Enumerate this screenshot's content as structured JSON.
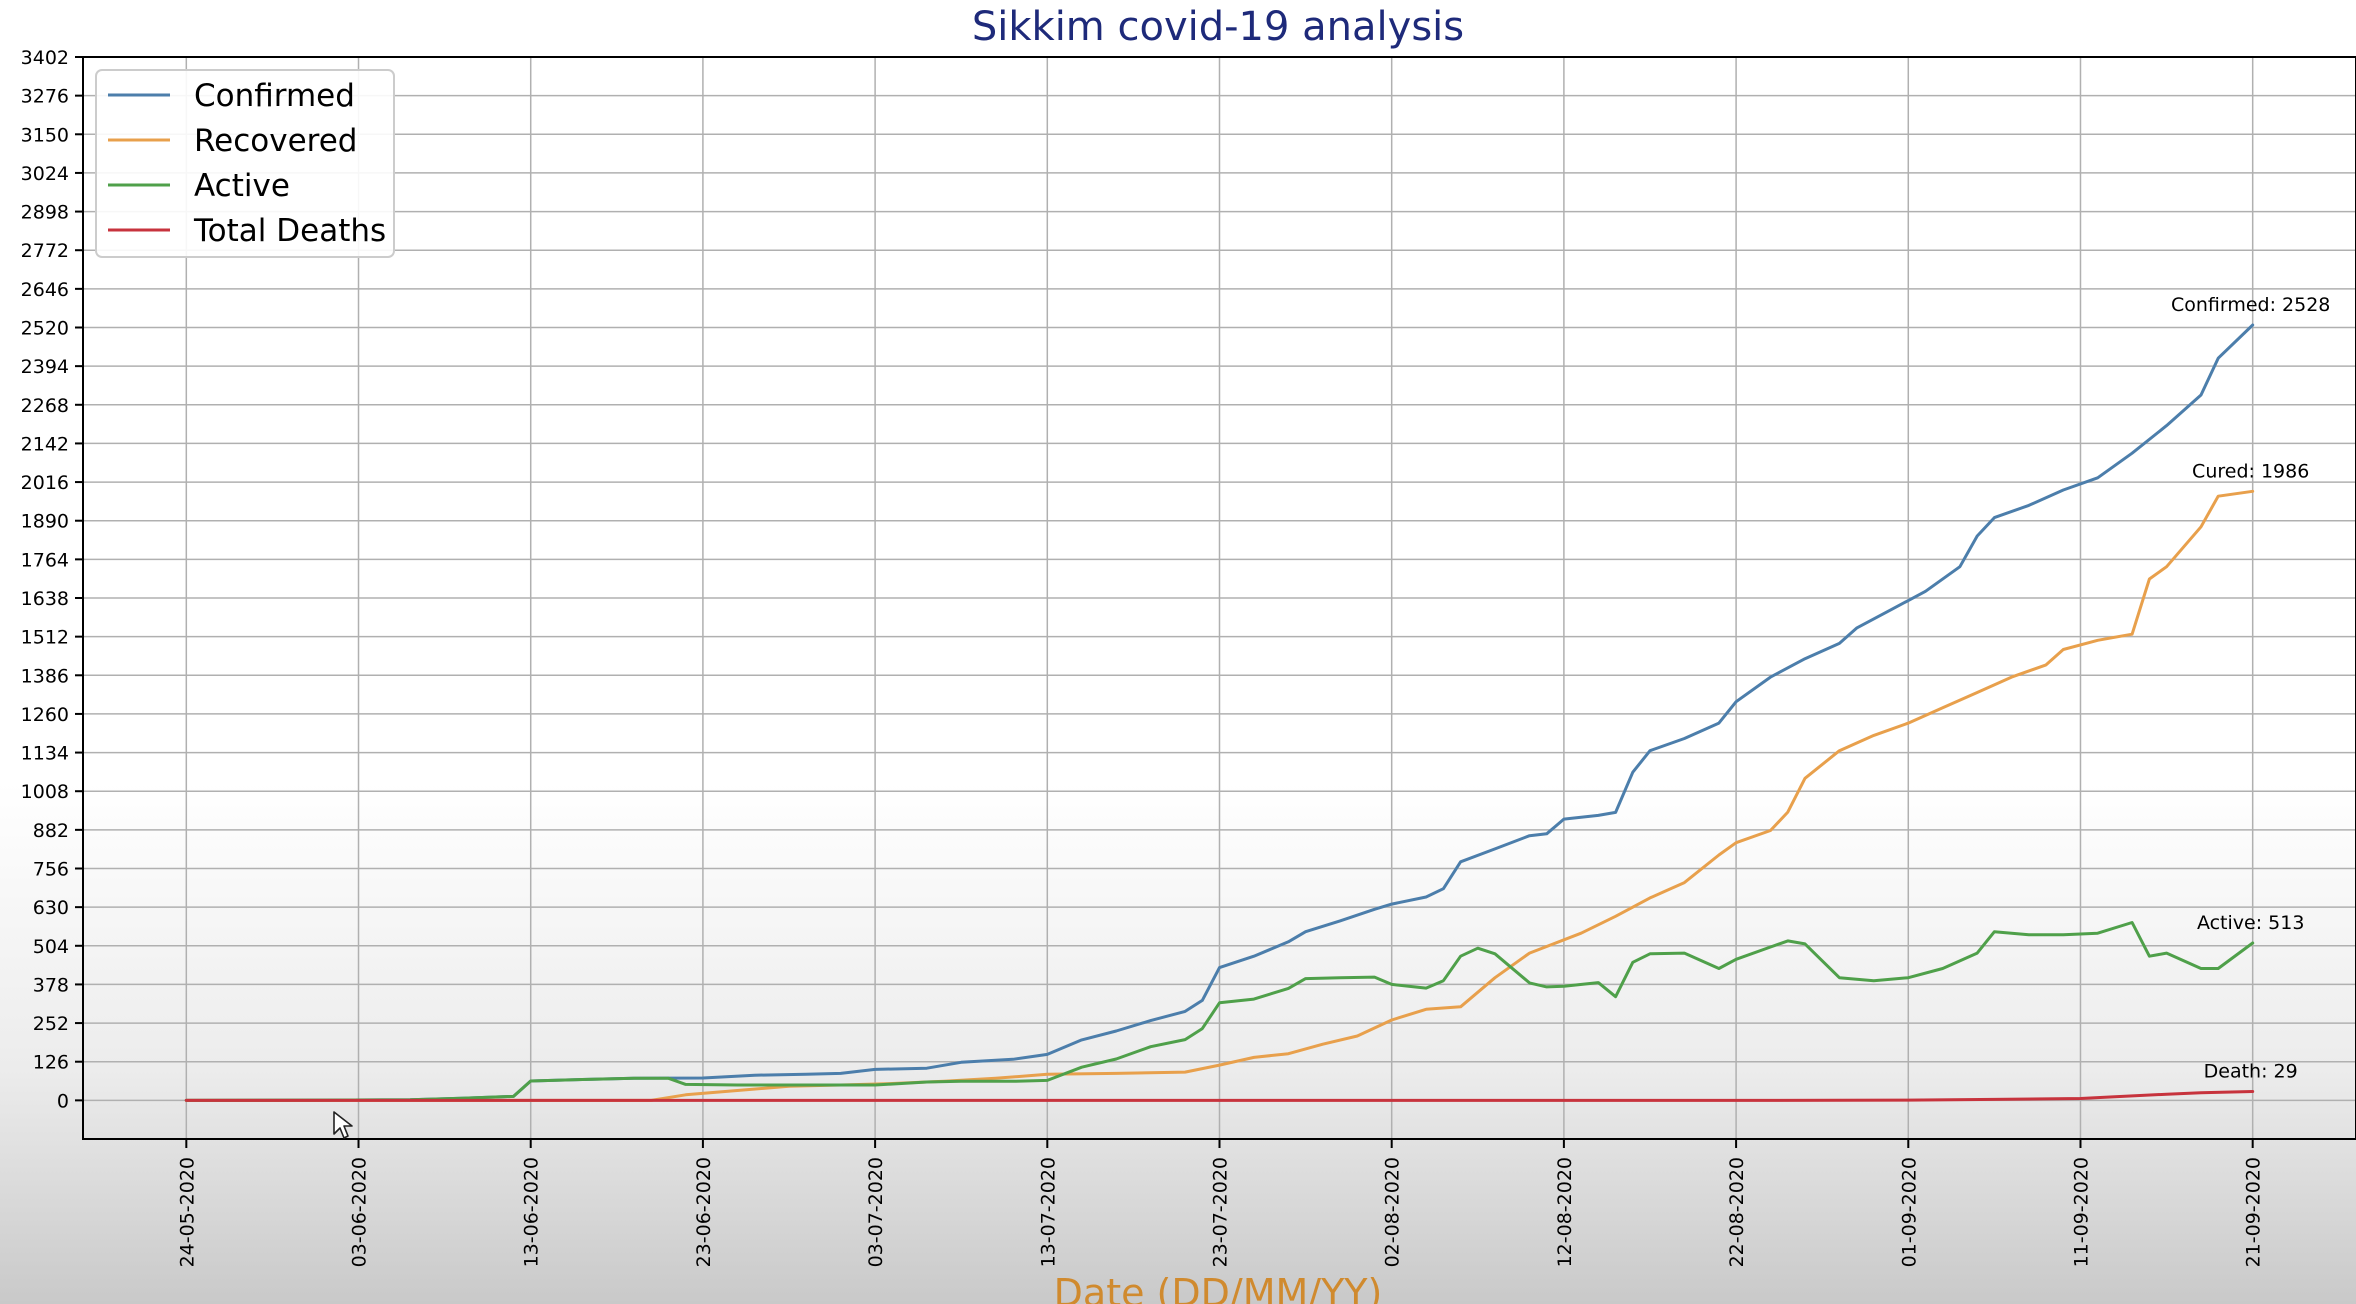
{
  "chart_data": {
    "type": "line",
    "title": "Sikkim covid-19 analysis",
    "xlabel": "Date (DD/MM/YY)",
    "ylabel": "",
    "ylim": [
      -126,
      3402
    ],
    "xlim": [
      "2020-05-18",
      "2020-09-27"
    ],
    "grid": true,
    "legend_position": "top-left",
    "y_ticks": [
      0,
      126,
      252,
      378,
      504,
      630,
      756,
      882,
      1008,
      1134,
      1260,
      1386,
      1512,
      1638,
      1764,
      1890,
      2016,
      2142,
      2268,
      2394,
      2520,
      2646,
      2772,
      2898,
      3024,
      3150,
      3276,
      3402
    ],
    "x_ticks": [
      "24-05-2020",
      "03-06-2020",
      "13-06-2020",
      "23-06-2020",
      "03-07-2020",
      "13-07-2020",
      "23-07-2020",
      "02-08-2020",
      "12-08-2020",
      "22-08-2020",
      "01-09-2020",
      "11-09-2020",
      "21-09-2020"
    ],
    "series": [
      {
        "name": "Confirmed",
        "color": "#4c7eab",
        "points": [
          [
            "2020-05-24",
            0
          ],
          [
            "2020-06-01",
            1
          ],
          [
            "2020-06-06",
            2
          ],
          [
            "2020-06-09",
            7
          ],
          [
            "2020-06-12",
            13
          ],
          [
            "2020-06-13",
            63
          ],
          [
            "2020-06-16",
            68
          ],
          [
            "2020-06-19",
            72
          ],
          [
            "2020-06-23",
            73
          ],
          [
            "2020-06-26",
            82
          ],
          [
            "2020-06-29",
            85
          ],
          [
            "2020-07-01",
            88
          ],
          [
            "2020-07-03",
            101
          ],
          [
            "2020-07-06",
            105
          ],
          [
            "2020-07-08",
            124
          ],
          [
            "2020-07-11",
            134
          ],
          [
            "2020-07-13",
            150
          ],
          [
            "2020-07-15",
            197
          ],
          [
            "2020-07-17",
            226
          ],
          [
            "2020-07-19",
            260
          ],
          [
            "2020-07-21",
            290
          ],
          [
            "2020-07-22",
            326
          ],
          [
            "2020-07-23",
            433
          ],
          [
            "2020-07-25",
            470
          ],
          [
            "2020-07-27",
            517
          ],
          [
            "2020-07-28",
            550
          ],
          [
            "2020-07-30",
            585
          ],
          [
            "2020-08-01",
            623
          ],
          [
            "2020-08-02",
            640
          ],
          [
            "2020-08-04",
            663
          ],
          [
            "2020-08-05",
            690
          ],
          [
            "2020-08-06",
            778
          ],
          [
            "2020-08-08",
            820
          ],
          [
            "2020-08-10",
            863
          ],
          [
            "2020-08-11",
            869
          ],
          [
            "2020-08-12",
            917
          ],
          [
            "2020-08-14",
            929
          ],
          [
            "2020-08-15",
            939
          ],
          [
            "2020-08-16",
            1070
          ],
          [
            "2020-08-17",
            1140
          ],
          [
            "2020-08-19",
            1180
          ],
          [
            "2020-08-21",
            1230
          ],
          [
            "2020-08-22",
            1300
          ],
          [
            "2020-08-24",
            1380
          ],
          [
            "2020-08-26",
            1440
          ],
          [
            "2020-08-28",
            1490
          ],
          [
            "2020-08-29",
            1540
          ],
          [
            "2020-08-31",
            1600
          ],
          [
            "2020-09-02",
            1660
          ],
          [
            "2020-09-04",
            1740
          ],
          [
            "2020-09-05",
            1840
          ],
          [
            "2020-09-06",
            1900
          ],
          [
            "2020-09-08",
            1940
          ],
          [
            "2020-09-10",
            1990
          ],
          [
            "2020-09-12",
            2030
          ],
          [
            "2020-09-14",
            2110
          ],
          [
            "2020-09-16",
            2200
          ],
          [
            "2020-09-18",
            2300
          ],
          [
            "2020-09-19",
            2420
          ],
          [
            "2020-09-21",
            2528
          ]
        ]
      },
      {
        "name": "Recovered",
        "color": "#e8a04c",
        "points": [
          [
            "2020-05-24",
            0
          ],
          [
            "2020-06-20",
            0
          ],
          [
            "2020-06-22",
            18
          ],
          [
            "2020-06-25",
            32
          ],
          [
            "2020-06-28",
            46
          ],
          [
            "2020-07-01",
            50
          ],
          [
            "2020-07-04",
            55
          ],
          [
            "2020-07-07",
            62
          ],
          [
            "2020-07-10",
            72
          ],
          [
            "2020-07-13",
            85
          ],
          [
            "2020-07-17",
            88
          ],
          [
            "2020-07-21",
            92
          ],
          [
            "2020-07-23",
            115
          ],
          [
            "2020-07-25",
            140
          ],
          [
            "2020-07-27",
            152
          ],
          [
            "2020-07-29",
            183
          ],
          [
            "2020-07-31",
            210
          ],
          [
            "2020-08-02",
            262
          ],
          [
            "2020-08-04",
            297
          ],
          [
            "2020-08-06",
            305
          ],
          [
            "2020-08-08",
            400
          ],
          [
            "2020-08-10",
            480
          ],
          [
            "2020-08-13",
            545
          ],
          [
            "2020-08-15",
            600
          ],
          [
            "2020-08-17",
            660
          ],
          [
            "2020-08-19",
            710
          ],
          [
            "2020-08-21",
            800
          ],
          [
            "2020-08-22",
            840
          ],
          [
            "2020-08-24",
            880
          ],
          [
            "2020-08-25",
            940
          ],
          [
            "2020-08-26",
            1050
          ],
          [
            "2020-08-28",
            1140
          ],
          [
            "2020-08-30",
            1190
          ],
          [
            "2020-09-01",
            1230
          ],
          [
            "2020-09-03",
            1280
          ],
          [
            "2020-09-05",
            1330
          ],
          [
            "2020-09-07",
            1380
          ],
          [
            "2020-09-09",
            1420
          ],
          [
            "2020-09-10",
            1470
          ],
          [
            "2020-09-12",
            1500
          ],
          [
            "2020-09-14",
            1520
          ],
          [
            "2020-09-15",
            1700
          ],
          [
            "2020-09-16",
            1740
          ],
          [
            "2020-09-18",
            1870
          ],
          [
            "2020-09-19",
            1970
          ],
          [
            "2020-09-21",
            1986
          ]
        ]
      },
      {
        "name": "Active",
        "color": "#4fa04a",
        "points": [
          [
            "2020-05-24",
            0
          ],
          [
            "2020-06-01",
            1
          ],
          [
            "2020-06-06",
            2
          ],
          [
            "2020-06-09",
            7
          ],
          [
            "2020-06-12",
            13
          ],
          [
            "2020-06-13",
            63
          ],
          [
            "2020-06-16",
            68
          ],
          [
            "2020-06-19",
            72
          ],
          [
            "2020-06-21",
            72
          ],
          [
            "2020-06-22",
            52
          ],
          [
            "2020-06-25",
            50
          ],
          [
            "2020-06-28",
            50
          ],
          [
            "2020-07-01",
            50
          ],
          [
            "2020-07-03",
            50
          ],
          [
            "2020-07-06",
            60
          ],
          [
            "2020-07-08",
            62
          ],
          [
            "2020-07-11",
            62
          ],
          [
            "2020-07-13",
            65
          ],
          [
            "2020-07-15",
            108
          ],
          [
            "2020-07-17",
            135
          ],
          [
            "2020-07-19",
            175
          ],
          [
            "2020-07-21",
            198
          ],
          [
            "2020-07-22",
            234
          ],
          [
            "2020-07-23",
            318
          ],
          [
            "2020-07-25",
            330
          ],
          [
            "2020-07-27",
            365
          ],
          [
            "2020-07-28",
            397
          ],
          [
            "2020-07-30",
            400
          ],
          [
            "2020-08-01",
            402
          ],
          [
            "2020-08-02",
            378
          ],
          [
            "2020-08-04",
            366
          ],
          [
            "2020-08-05",
            390
          ],
          [
            "2020-08-06",
            470
          ],
          [
            "2020-08-07",
            496
          ],
          [
            "2020-08-08",
            478
          ],
          [
            "2020-08-10",
            383
          ],
          [
            "2020-08-11",
            370
          ],
          [
            "2020-08-12",
            372
          ],
          [
            "2020-08-14",
            384
          ],
          [
            "2020-08-15",
            338
          ],
          [
            "2020-08-16",
            450
          ],
          [
            "2020-08-17",
            478
          ],
          [
            "2020-08-19",
            480
          ],
          [
            "2020-08-21",
            430
          ],
          [
            "2020-08-22",
            460
          ],
          [
            "2020-08-24",
            500
          ],
          [
            "2020-08-25",
            520
          ],
          [
            "2020-08-26",
            510
          ],
          [
            "2020-08-28",
            400
          ],
          [
            "2020-08-30",
            390
          ],
          [
            "2020-09-01",
            400
          ],
          [
            "2020-09-03",
            430
          ],
          [
            "2020-09-05",
            480
          ],
          [
            "2020-09-06",
            550
          ],
          [
            "2020-09-08",
            540
          ],
          [
            "2020-09-10",
            540
          ],
          [
            "2020-09-12",
            545
          ],
          [
            "2020-09-14",
            580
          ],
          [
            "2020-09-15",
            470
          ],
          [
            "2020-09-16",
            480
          ],
          [
            "2020-09-18",
            430
          ],
          [
            "2020-09-19",
            430
          ],
          [
            "2020-09-21",
            513
          ]
        ]
      },
      {
        "name": "Total Deaths",
        "color": "#c7333d",
        "points": [
          [
            "2020-05-24",
            0
          ],
          [
            "2020-08-22",
            0
          ],
          [
            "2020-09-01",
            1
          ],
          [
            "2020-09-06",
            3
          ],
          [
            "2020-09-11",
            6
          ],
          [
            "2020-09-13",
            12
          ],
          [
            "2020-09-16",
            20
          ],
          [
            "2020-09-18",
            25
          ],
          [
            "2020-09-21",
            29
          ]
        ]
      }
    ],
    "annotations": [
      {
        "text": "Confirmed: 2528",
        "date": "2020-09-21",
        "value": 2528
      },
      {
        "text": "Cured: 1986",
        "date": "2020-09-21",
        "value": 1986
      },
      {
        "text": "Active: 513",
        "date": "2020-09-21",
        "value": 513
      },
      {
        "text": "Death: 29",
        "date": "2020-09-21",
        "value": 29
      }
    ],
    "colors": {
      "title": "#1e2a7a",
      "xlabel": "#d08a2e",
      "axis": "#000000",
      "grid": "#b0b0b0",
      "tick_text": "#000000"
    }
  }
}
